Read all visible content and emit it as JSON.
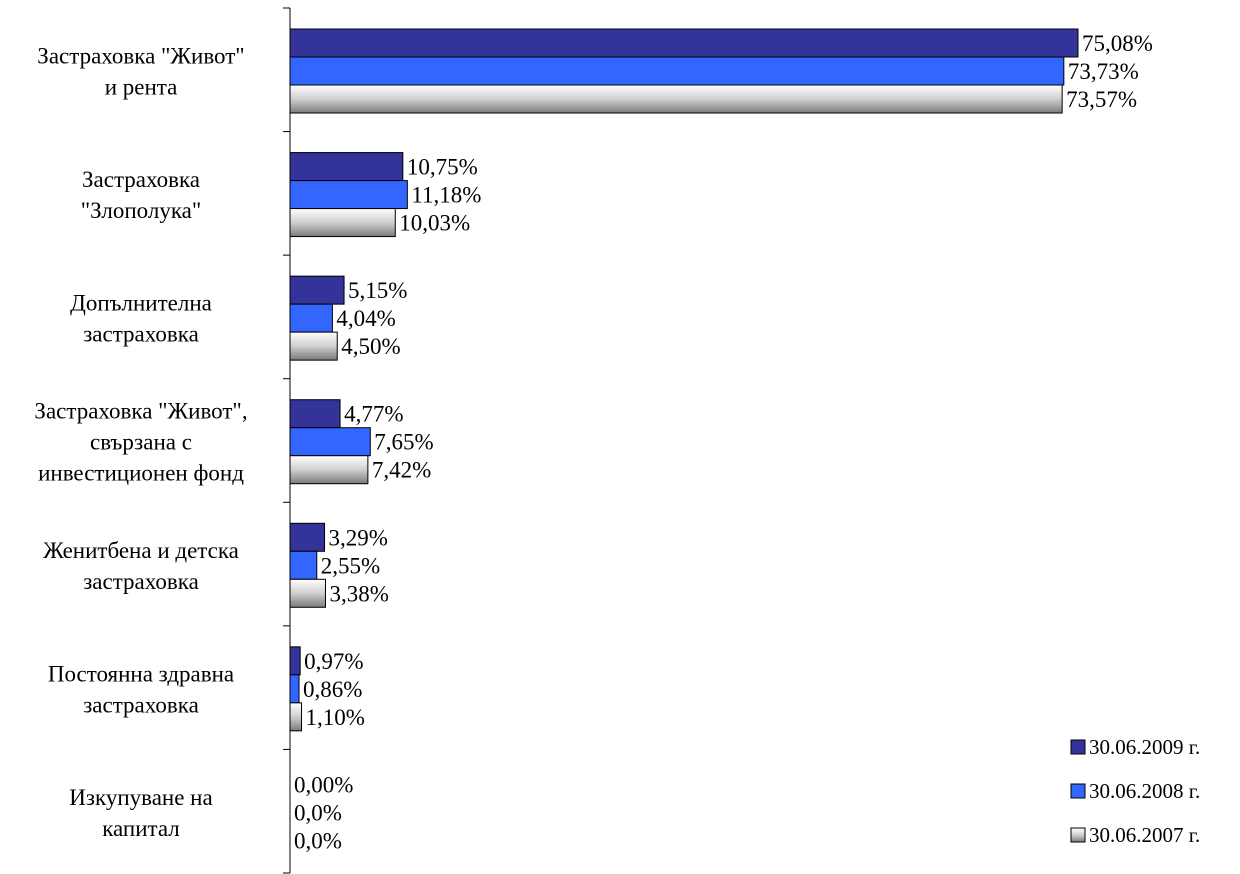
{
  "chart_data": {
    "type": "bar",
    "orientation": "horizontal",
    "title": "",
    "xlabel": "",
    "ylabel": "",
    "xlim": [
      0,
      80
    ],
    "grid": false,
    "legend_position": "bottom-right",
    "categories": [
      [
        "Застраховка \"Живот\"",
        "и рента"
      ],
      [
        "Застраховка",
        "\"Злополука\""
      ],
      [
        "Допълнителна",
        "застраховка"
      ],
      [
        "Застраховка \"Живот\",",
        "свързана с",
        "инвестиционен фонд"
      ],
      [
        "Женитбена и детска",
        "застраховка"
      ],
      [
        "Постоянна здравна",
        "застраховка"
      ],
      [
        "Изкупуване на",
        "капитал"
      ]
    ],
    "series": [
      {
        "name": "30.06.2009 г.",
        "color": "#33339a",
        "values": [
          75.08,
          10.75,
          5.15,
          4.77,
          3.29,
          0.97,
          0.0
        ],
        "labels": [
          "75,08%",
          "10,75%",
          "5,15%",
          "4,77%",
          "3,29%",
          "0,97%",
          "0,00%"
        ]
      },
      {
        "name": "30.06.2008 г.",
        "color": "#3366ff",
        "values": [
          73.73,
          11.18,
          4.04,
          7.65,
          2.55,
          0.86,
          0.0
        ],
        "labels": [
          "73,73%",
          "11,18%",
          "4,04%",
          "7,65%",
          "2,55%",
          "0,86%",
          "0,0%"
        ]
      },
      {
        "name": "30.06.2007 г.",
        "color": "gradient-gray",
        "values": [
          73.57,
          10.03,
          4.5,
          7.42,
          3.38,
          1.1,
          0.0
        ],
        "labels": [
          "73,57%",
          "10,03%",
          "4,50%",
          "7,42%",
          "3,38%",
          "1,10%",
          "0,0%"
        ]
      }
    ]
  }
}
